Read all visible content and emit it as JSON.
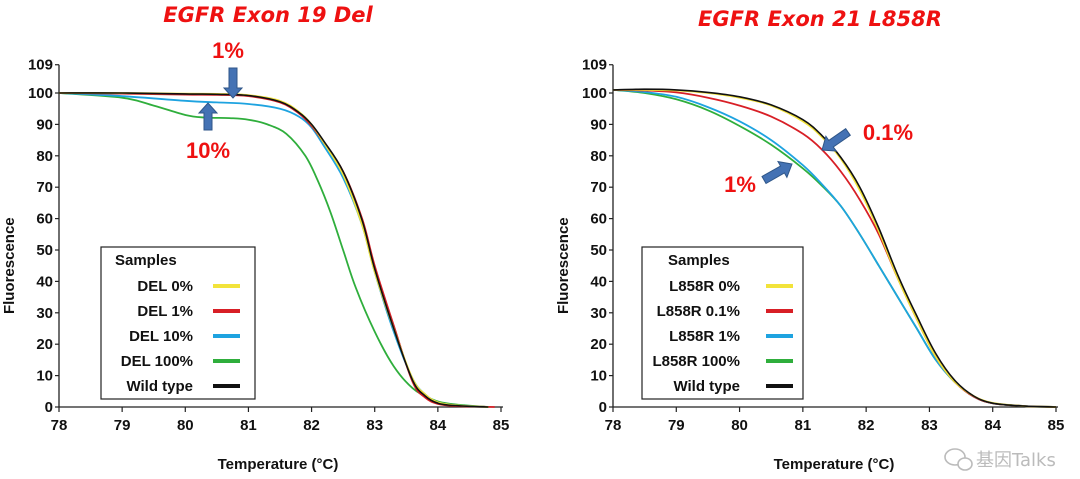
{
  "chart_data": [
    {
      "type": "line",
      "title": "EGFR  Exon 19 Del",
      "xlabel": "Temperature (°C)",
      "ylabel": "Fluorescence",
      "xlim": [
        78,
        85
      ],
      "ylim": [
        0,
        109
      ],
      "xticks": [
        "78",
        "79",
        "80",
        "81",
        "82",
        "83",
        "84",
        "85"
      ],
      "yticks": [
        "0",
        "10",
        "20",
        "30",
        "40",
        "50",
        "60",
        "70",
        "80",
        "90",
        "100",
        "109"
      ],
      "grid": false,
      "legend": {
        "title": "Samples",
        "placement": "bottom-left"
      },
      "series": [
        {
          "name": "DEL 0%",
          "color": "#f2e33a",
          "x": [
            78,
            79,
            80,
            80.5,
            81,
            81.5,
            81.8,
            82,
            82.2,
            82.5,
            82.8,
            83,
            83.3,
            83.6,
            83.8,
            84,
            84.3,
            84.8
          ],
          "y": [
            100,
            100,
            99.8,
            99.7,
            99.3,
            97.5,
            94,
            90,
            84,
            74,
            58,
            43,
            25,
            9,
            4,
            1.5,
            0.5,
            0
          ]
        },
        {
          "name": "DEL 1%",
          "color": "#d81f26",
          "x": [
            78,
            79,
            80,
            80.5,
            81,
            81.5,
            81.8,
            82,
            82.2,
            82.5,
            82.8,
            83,
            83.3,
            83.6,
            83.8,
            84,
            84.3,
            84.9
          ],
          "y": [
            100,
            99.8,
            99.5,
            99.4,
            99,
            97,
            93.5,
            89.5,
            84,
            75,
            60,
            45,
            26,
            8,
            3,
            1,
            0.3,
            0
          ]
        },
        {
          "name": "DEL 10%",
          "color": "#1ea3e0",
          "x": [
            78,
            79,
            80,
            80.5,
            81,
            81.5,
            81.8,
            82,
            82.2,
            82.5,
            82.8,
            83,
            83.3,
            83.6,
            83.8,
            84,
            84.3,
            84.8
          ],
          "y": [
            100,
            99,
            97.5,
            97,
            96.5,
            95,
            92.5,
            89,
            83,
            73,
            58,
            43,
            24,
            9,
            4,
            1.5,
            0.5,
            0
          ]
        },
        {
          "name": "DEL 100%",
          "color": "#2fae3c",
          "x": [
            78,
            79,
            79.5,
            80,
            80.3,
            80.7,
            81,
            81.3,
            81.6,
            81.9,
            82.1,
            82.3,
            82.5,
            82.7,
            83,
            83.3,
            83.6,
            83.9,
            84.2,
            84.8
          ],
          "y": [
            100,
            98.5,
            96,
            93,
            92.2,
            92,
            91.5,
            90,
            87,
            80,
            72,
            62,
            50,
            38,
            24,
            13,
            6,
            2.5,
            1,
            0
          ]
        },
        {
          "name": "Wild type",
          "color": "#111111",
          "x": [
            78,
            79,
            80,
            80.5,
            81,
            81.5,
            81.8,
            82,
            82.2,
            82.5,
            82.8,
            83,
            83.3,
            83.6,
            83.8,
            84,
            84.3,
            84.8
          ],
          "y": [
            100,
            100,
            99.7,
            99.6,
            99.2,
            97.2,
            93.8,
            90,
            84.5,
            75,
            59.5,
            44,
            25,
            8.5,
            3.5,
            1.2,
            0.4,
            0
          ]
        }
      ],
      "annotations": [
        {
          "text": "1%",
          "points_to": "DEL 1%",
          "x": 80.6,
          "y": 99.5
        },
        {
          "text": "10%",
          "points_to": "DEL 10%",
          "x": 80.3,
          "y": 97
        }
      ]
    },
    {
      "type": "line",
      "title": "EGFR  Exon 21 L858R",
      "xlabel": "Temperature (°C)",
      "ylabel": "Fluorescence",
      "xlim": [
        78,
        85
      ],
      "ylim": [
        0,
        109
      ],
      "xticks": [
        "78",
        "79",
        "80",
        "81",
        "82",
        "83",
        "84",
        "85"
      ],
      "yticks": [
        "0",
        "10",
        "20",
        "30",
        "40",
        "50",
        "60",
        "70",
        "80",
        "90",
        "100",
        "109"
      ],
      "grid": false,
      "legend": {
        "title": "Samples",
        "placement": "bottom-left"
      },
      "series": [
        {
          "name": "L858R 0%",
          "color": "#f2e33a",
          "x": [
            78,
            78.5,
            79,
            79.5,
            80,
            80.5,
            81,
            81.3,
            81.6,
            81.9,
            82.2,
            82.5,
            82.8,
            83.1,
            83.4,
            83.7,
            84,
            84.5,
            85
          ],
          "y": [
            101,
            101,
            100.8,
            100,
            98.5,
            96,
            91,
            86,
            79,
            69,
            56,
            41,
            28,
            16,
            8,
            3.5,
            1.3,
            0.3,
            0
          ]
        },
        {
          "name": "L858R 0.1%",
          "color": "#d81f26",
          "x": [
            78,
            78.5,
            79,
            79.5,
            80,
            80.5,
            81,
            81.3,
            81.6,
            81.9,
            82.2,
            82.5,
            82.8,
            83.1,
            83.4,
            83.7,
            84,
            84.5,
            85
          ],
          "y": [
            101,
            100.8,
            100.2,
            98.5,
            96,
            92.5,
            87,
            82,
            75,
            66,
            55,
            41,
            28,
            16,
            8,
            3.3,
            1.2,
            0.3,
            0
          ]
        },
        {
          "name": "L858R 1%",
          "color": "#1ea3e0",
          "x": [
            78,
            78.5,
            79,
            79.5,
            80,
            80.5,
            81,
            81.3,
            81.6,
            81.9,
            82.2,
            82.5,
            82.8,
            83.1,
            83.4,
            83.7,
            84,
            84.5,
            85
          ],
          "y": [
            101,
            100.3,
            98.8,
            95.5,
            91,
            85,
            77,
            71,
            64,
            55,
            45,
            35,
            25,
            15,
            8,
            3.3,
            1.2,
            0.3,
            0
          ]
        },
        {
          "name": "L858R 100%",
          "color": "#2fae3c",
          "x": [
            78,
            78.5,
            79,
            79.5,
            80,
            80.5,
            81,
            81.3,
            81.6,
            81.9,
            82.2,
            82.5,
            82.8,
            83.1,
            83.4,
            83.7,
            84,
            84.5,
            85
          ],
          "y": [
            101,
            100,
            98,
            94.5,
            89.5,
            83.5,
            76,
            70.5,
            64,
            55,
            45,
            35,
            25,
            15,
            8,
            3.3,
            1.2,
            0.3,
            0
          ]
        },
        {
          "name": "Wild type",
          "color": "#111111",
          "x": [
            78,
            78.5,
            79,
            79.5,
            80,
            80.5,
            81,
            81.3,
            81.6,
            81.9,
            82.2,
            82.5,
            82.8,
            83.1,
            83.4,
            83.7,
            84,
            84.5,
            85
          ],
          "y": [
            101,
            101.2,
            101,
            100.2,
            98.8,
            96.2,
            91.5,
            86.5,
            79.5,
            70,
            57,
            42,
            29,
            17,
            8.5,
            3.5,
            1.2,
            0.3,
            0
          ]
        }
      ],
      "annotations": [
        {
          "text": "0.1%",
          "points_to": "L858R 0.1%",
          "x": 81.35,
          "y": 81
        },
        {
          "text": "1%",
          "points_to": "L858R 1%",
          "x": 80.8,
          "y": 77
        }
      ]
    }
  ],
  "watermark": {
    "text": "基因Talks",
    "icon": "wechat-icon"
  }
}
